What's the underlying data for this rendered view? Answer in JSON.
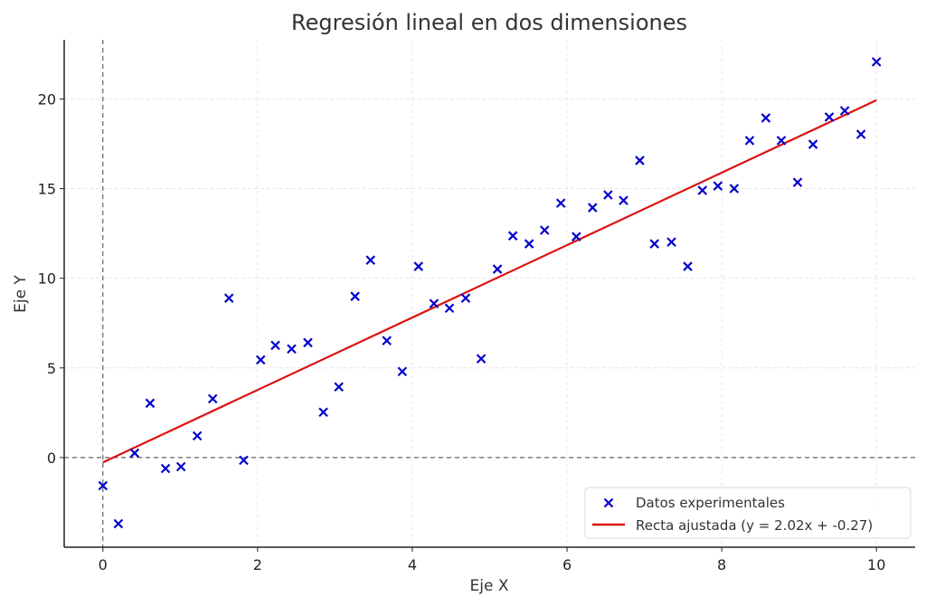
{
  "chart_data": {
    "type": "scatter",
    "title": "Regresión lineal en dos dimensiones",
    "xlabel": "Eje X",
    "ylabel": "Eje Y",
    "xlim": [
      -0.5,
      10.5
    ],
    "ylim": [
      -5,
      23.3
    ],
    "xticks": [
      0,
      2,
      4,
      6,
      8,
      10
    ],
    "yticks": [
      0,
      5,
      10,
      15,
      20
    ],
    "grid": true,
    "reference_lines": {
      "x": 0,
      "y": 0,
      "style": "dashed"
    },
    "legend_position": "lower-right",
    "series": [
      {
        "name": "Datos experimentales",
        "kind": "scatter",
        "marker": "x",
        "color": "#0000cc",
        "points": [
          [
            0.0,
            -1.57
          ],
          [
            0.2,
            -3.69
          ],
          [
            0.41,
            0.25
          ],
          [
            0.61,
            3.03
          ],
          [
            0.81,
            -0.61
          ],
          [
            1.01,
            -0.51
          ],
          [
            1.22,
            1.21
          ],
          [
            1.42,
            3.28
          ],
          [
            1.63,
            8.89
          ],
          [
            1.82,
            -0.15
          ],
          [
            2.04,
            5.45
          ],
          [
            2.23,
            6.26
          ],
          [
            2.44,
            6.06
          ],
          [
            2.65,
            6.41
          ],
          [
            2.85,
            2.53
          ],
          [
            3.05,
            3.94
          ],
          [
            3.26,
            8.99
          ],
          [
            3.46,
            11.01
          ],
          [
            3.67,
            6.52
          ],
          [
            3.87,
            4.8
          ],
          [
            4.08,
            10.66
          ],
          [
            4.28,
            8.59
          ],
          [
            4.48,
            8.33
          ],
          [
            4.69,
            8.89
          ],
          [
            4.89,
            5.51
          ],
          [
            5.1,
            10.51
          ],
          [
            5.3,
            12.37
          ],
          [
            5.51,
            11.92
          ],
          [
            5.71,
            12.68
          ],
          [
            5.92,
            14.19
          ],
          [
            6.12,
            12.32
          ],
          [
            6.33,
            13.94
          ],
          [
            6.53,
            14.65
          ],
          [
            6.73,
            14.34
          ],
          [
            6.94,
            16.57
          ],
          [
            7.13,
            11.92
          ],
          [
            7.35,
            12.02
          ],
          [
            7.56,
            10.66
          ],
          [
            7.75,
            14.9
          ],
          [
            7.95,
            15.15
          ],
          [
            8.16,
            15.0
          ],
          [
            8.36,
            17.68
          ],
          [
            8.57,
            18.94
          ],
          [
            8.77,
            17.68
          ],
          [
            8.98,
            15.35
          ],
          [
            9.18,
            17.47
          ],
          [
            9.39,
            18.99
          ],
          [
            9.59,
            19.34
          ],
          [
            9.8,
            18.03
          ],
          [
            10.0,
            22.07
          ]
        ]
      },
      {
        "name": "Recta ajustada (y = 2.02x + -0.27)",
        "kind": "line",
        "color": "#dd1111",
        "slope": 2.02,
        "intercept": -0.27,
        "x_range": [
          0,
          10
        ]
      }
    ]
  }
}
